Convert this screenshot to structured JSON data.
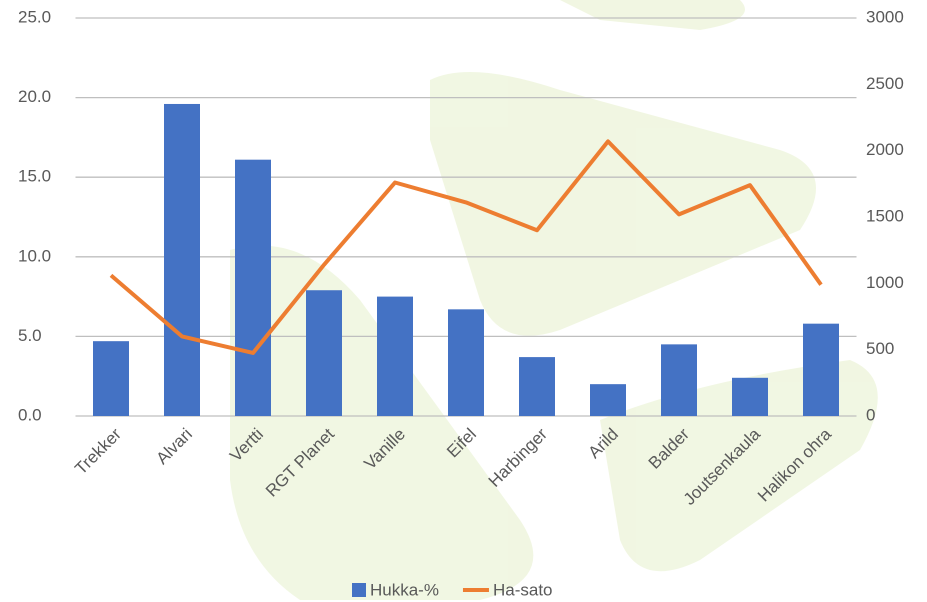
{
  "chart_data": {
    "type": "bar_line",
    "categories": [
      "Trekker",
      "Alvari",
      "Vertti",
      "RGT Planet",
      "Vanille",
      "Eifel",
      "Harbinger",
      "Arild",
      "Balder",
      "Joutsenkaula",
      "Halikon ohra"
    ],
    "series": [
      {
        "name": "Hukka-%",
        "color": "#4472c4",
        "type": "bar",
        "values": [
          4.7,
          19.6,
          16.1,
          7.9,
          7.5,
          6.7,
          3.7,
          2.0,
          4.5,
          2.4,
          5.8
        ]
      },
      {
        "name": "Ha-sato",
        "color": "#ed7d31",
        "type": "line",
        "axis": "y2",
        "values": [
          1060,
          600,
          475,
          1140,
          1760,
          1610,
          1400,
          2070,
          1520,
          1740,
          990
        ]
      }
    ],
    "ylim": [
      0,
      25
    ],
    "yticks": [
      {
        "value": 0,
        "label": "0.0"
      },
      {
        "value": 5,
        "label": "5.0"
      },
      {
        "value": 10,
        "label": "10.0"
      },
      {
        "value": 15,
        "label": "15.0"
      },
      {
        "value": 20,
        "label": "20.0"
      },
      {
        "value": 25,
        "label": "25.0"
      }
    ],
    "y2lim": [
      0,
      3000
    ],
    "y2ticks": [
      0,
      500,
      1000,
      1500,
      2000,
      2500,
      3000
    ],
    "grid": true,
    "legend": "bottom"
  }
}
